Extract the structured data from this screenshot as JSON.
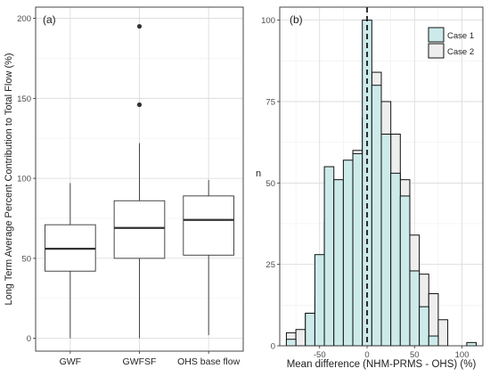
{
  "chart_data": [
    {
      "type": "box",
      "panel_label": "(a)",
      "xlabel": "",
      "ylabel": "Long Term Average Percent Contribution to Total Flow (%)",
      "ylim": [
        -8,
        207
      ],
      "yticks": [
        0,
        50,
        100,
        150,
        200
      ],
      "grid": true,
      "categories": [
        "GWF",
        "GWFSF",
        "OHS base flow"
      ],
      "boxes": [
        {
          "name": "GWF",
          "whisker_low": 0,
          "q1": 42,
          "median": 56,
          "q3": 71,
          "whisker_high": 97,
          "outliers": []
        },
        {
          "name": "GWFSF",
          "whisker_low": 0,
          "q1": 50,
          "median": 69,
          "q3": 86,
          "whisker_high": 122,
          "outliers": [
            146,
            195
          ]
        },
        {
          "name": "OHS base flow",
          "whisker_low": 2,
          "q1": 52,
          "median": 74,
          "q3": 89,
          "whisker_high": 99,
          "outliers": []
        }
      ]
    },
    {
      "type": "histogram",
      "panel_label": "(b)",
      "xlabel": "Mean difference (NHM-PRMS - OHS) (%)",
      "ylabel": "n",
      "xlim": [
        -92,
        122
      ],
      "ylim": [
        0,
        104
      ],
      "xticks": [
        -50,
        0,
        50,
        100
      ],
      "yticks": [
        0,
        25,
        50,
        75,
        100
      ],
      "grid": true,
      "vline": 0,
      "bin_width": 10,
      "bin_starts": [
        -85,
        -75,
        -65,
        -55,
        -45,
        -35,
        -25,
        -15,
        -5,
        5,
        15,
        25,
        35,
        45,
        55,
        65,
        75,
        85,
        95,
        105
      ],
      "legend_position": "top-right",
      "series": [
        {
          "name": "Case 1",
          "color": "#cdeaea",
          "values": [
            2,
            0,
            10,
            28,
            55,
            51,
            57,
            59,
            100,
            80,
            65,
            53,
            46,
            23,
            12,
            3,
            0,
            0,
            0,
            1
          ]
        },
        {
          "name": "Case 2",
          "color": "#eeeeee",
          "values": [
            4,
            5,
            10,
            15,
            38,
            36,
            50,
            60,
            70,
            84,
            75,
            65,
            51,
            34,
            22,
            16,
            8,
            0,
            0,
            0
          ]
        }
      ]
    }
  ]
}
